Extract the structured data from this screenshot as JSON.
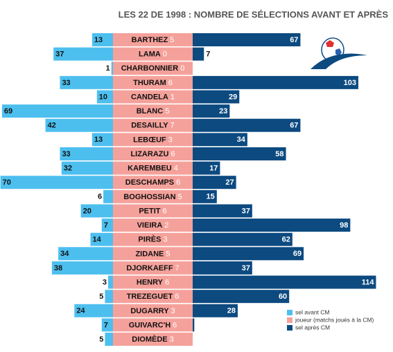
{
  "chart_data": {
    "type": "butterfly",
    "title": "LES 22 DE 1998 : NOMBRE DE SÉLECTIONS AVANT ET APRÈS",
    "categories": [
      "BARTHEZ",
      "LAMA",
      "CHARBONNIER",
      "THURAM",
      "CANDELA",
      "BLANC",
      "DESAILLY",
      "LEBŒUF",
      "LIZARAZU",
      "KAREMBEU",
      "DESCHAMPS",
      "BOGHOSSIAN",
      "PETIT",
      "VIEIRA",
      "PIRÈS",
      "ZIDANE",
      "DJORKAEFF",
      "HENRY",
      "TREZEGUET",
      "DUGARRY",
      "GUIVARC'H",
      "DIOMÈDE"
    ],
    "series": [
      {
        "name": "sel avant CM",
        "color": "#4dbfef",
        "values": [
          13,
          37,
          1,
          33,
          10,
          69,
          42,
          13,
          33,
          32,
          70,
          6,
          20,
          7,
          14,
          34,
          38,
          3,
          5,
          24,
          7,
          5
        ]
      },
      {
        "name": "joueur (matchs joués à la CM)",
        "color": "#f5a19b",
        "values": [
          5,
          0,
          0,
          6,
          1,
          5,
          7,
          3,
          6,
          4,
          6,
          5,
          6,
          2,
          3,
          5,
          7,
          6,
          6,
          3,
          6,
          3
        ]
      },
      {
        "name": "sel après CM",
        "color": "#0c4a80",
        "values": [
          67,
          7,
          null,
          103,
          29,
          23,
          67,
          34,
          58,
          17,
          27,
          15,
          37,
          98,
          62,
          69,
          37,
          114,
          60,
          28,
          1,
          null
        ],
        "value_labels": [
          "67",
          "7",
          null,
          "103",
          "29",
          "23",
          "67",
          "34",
          "58",
          "17",
          "27",
          "15",
          "37",
          "98",
          "62",
          "69",
          "37",
          "114",
          "60",
          "28",
          null,
          null
        ]
      }
    ],
    "legend": "bottom-right"
  }
}
